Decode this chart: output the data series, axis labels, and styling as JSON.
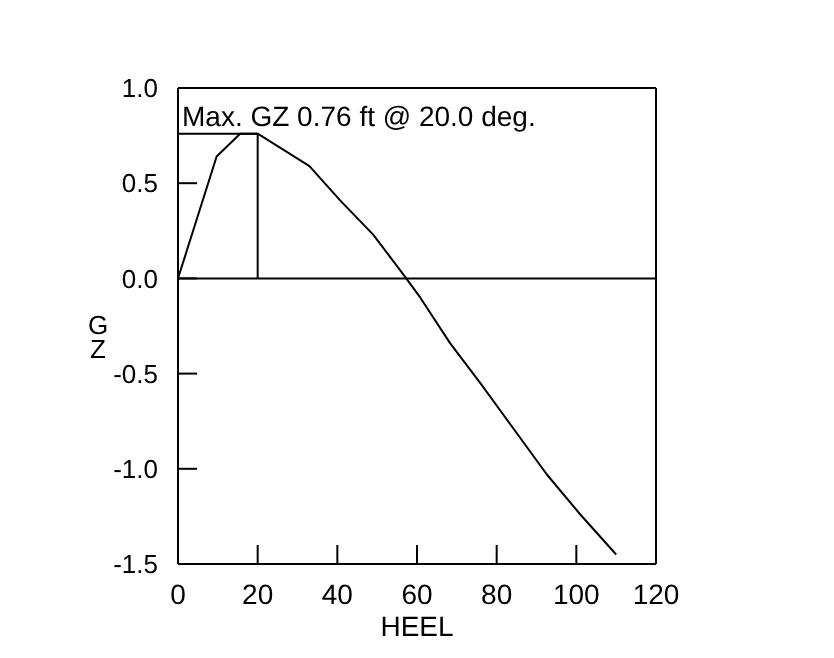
{
  "chart_data": {
    "type": "line",
    "xlabel": "HEEL",
    "ylabel": "GZ",
    "x": [
      0,
      9.7,
      15.6,
      20,
      33,
      40.7,
      49,
      56.6,
      60.8,
      68.3,
      75.9,
      92.6,
      101,
      110
    ],
    "series": [
      {
        "color": "#000000",
        "values": [
          0,
          0.64,
          0.76,
          0.76,
          0.59,
          0.41,
          0.23,
          0.02,
          -0.1,
          -0.34,
          -0.55,
          -1.03,
          -1.24,
          -1.45
        ]
      }
    ],
    "xlim": [
      0,
      120
    ],
    "xticks": [
      0,
      20,
      40,
      60,
      80,
      100,
      120
    ],
    "ylim": [
      -1.5,
      1
    ],
    "yticks": [
      -1.5,
      {
        "value": -1,
        "label": "-1.0"
      },
      -0.5,
      {
        "value": 0,
        "label": "0.0"
      },
      0.5,
      {
        "value": 1,
        "label": "1.0"
      }
    ],
    "ref_lines": [
      {
        "axis": "y",
        "value": 0
      }
    ],
    "annotations": [
      {
        "text": "Max. GZ 0.76 ft @ 20.0 deg.",
        "x": 20,
        "y": 0.76
      }
    ],
    "grid": false,
    "legend": false,
    "marker": "none",
    "line_style": "solid"
  }
}
